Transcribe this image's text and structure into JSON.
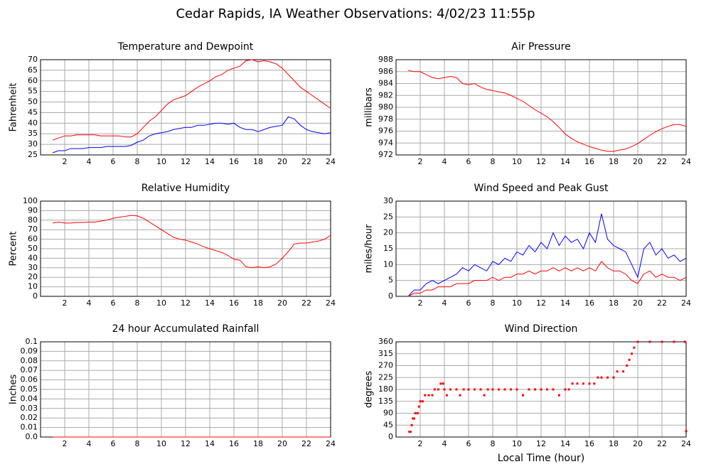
{
  "title": "Cedar Rapids, IA Weather Observations: 4/02/23 11:55p",
  "chart_data": [
    {
      "type": "line",
      "title": "Temperature and Dewpoint",
      "ylabel": "Fahrenheit",
      "x": [
        1,
        1.5,
        2,
        2.5,
        3,
        3.5,
        4,
        4.5,
        5,
        5.5,
        6,
        6.5,
        7,
        7.5,
        8,
        8.5,
        9,
        9.5,
        10,
        10.5,
        11,
        11.5,
        12,
        12.5,
        13,
        13.5,
        14,
        14.5,
        15,
        15.5,
        16,
        16.5,
        17,
        17.5,
        18,
        18.5,
        19,
        19.5,
        20,
        20.5,
        21,
        21.5,
        22,
        22.5,
        23,
        23.5,
        24
      ],
      "series": [
        {
          "name": "Temperature",
          "color": "#ff0000",
          "values": [
            32,
            33,
            34,
            34,
            34.5,
            34.5,
            34.5,
            34.5,
            34,
            34,
            34,
            34,
            33.5,
            33.5,
            35,
            38,
            41,
            43,
            46,
            49,
            51,
            52,
            53,
            55,
            57,
            58.5,
            60,
            62,
            63,
            65,
            66,
            67,
            69.5,
            70,
            69,
            69.5,
            69,
            68,
            66,
            63,
            60,
            57,
            55,
            53,
            51,
            49,
            47
          ]
        },
        {
          "name": "Dewpoint",
          "color": "#0000ff",
          "values": [
            26,
            27,
            27,
            28,
            28,
            28,
            28.5,
            28.5,
            28.5,
            29,
            29,
            29,
            29,
            29.5,
            31,
            32,
            34,
            35,
            35.5,
            36,
            37,
            37.5,
            38,
            38,
            39,
            39,
            39.5,
            40,
            40,
            39.5,
            40,
            38,
            37,
            37,
            36,
            37,
            38,
            38.5,
            39,
            43,
            42,
            39,
            37,
            36,
            35.5,
            35,
            35.5
          ]
        }
      ],
      "xlim": [
        0,
        24
      ],
      "xticks": [
        2,
        4,
        6,
        8,
        10,
        12,
        14,
        16,
        18,
        20,
        22,
        24
      ],
      "ylim": [
        25,
        70
      ],
      "yticks": [
        25,
        30,
        35,
        40,
        45,
        50,
        55,
        60,
        65,
        70
      ],
      "grid": true
    },
    {
      "type": "line",
      "title": "Air Pressure",
      "ylabel": "millibars",
      "x": [
        1,
        1.5,
        2,
        2.5,
        3,
        3.5,
        4,
        4.5,
        5,
        5.5,
        6,
        6.5,
        7,
        7.5,
        8,
        8.5,
        9,
        9.5,
        10,
        10.5,
        11,
        11.5,
        12,
        12.5,
        13,
        13.5,
        14,
        14.5,
        15,
        15.5,
        16,
        16.5,
        17,
        17.5,
        18,
        18.5,
        19,
        19.5,
        20,
        20.5,
        21,
        21.5,
        22,
        22.5,
        23,
        23.5,
        24
      ],
      "series": [
        {
          "name": "Pressure",
          "color": "#ff0000",
          "values": [
            986.2,
            986,
            986,
            985.5,
            985,
            984.8,
            985,
            985.2,
            985,
            984,
            983.8,
            984,
            983.4,
            983,
            982.8,
            982.6,
            982.4,
            982,
            981.5,
            981,
            980.3,
            979.6,
            979,
            978.4,
            977.6,
            976.6,
            975.5,
            974.8,
            974.2,
            973.8,
            973.4,
            973.1,
            972.8,
            972.6,
            972.6,
            972.8,
            973,
            973.4,
            973.9,
            974.6,
            975.3,
            975.9,
            976.4,
            976.8,
            977.1,
            977.1,
            976.8
          ]
        }
      ],
      "xlim": [
        0,
        24
      ],
      "xticks": [
        2,
        4,
        6,
        8,
        10,
        12,
        14,
        16,
        18,
        20,
        22,
        24
      ],
      "ylim": [
        972,
        988
      ],
      "yticks": [
        972,
        974,
        976,
        978,
        980,
        982,
        984,
        986,
        988
      ],
      "grid": true
    },
    {
      "type": "line",
      "title": "Relative Humidity",
      "ylabel": "Percent",
      "x": [
        1,
        1.5,
        2,
        2.5,
        3,
        3.5,
        4,
        4.5,
        5,
        5.5,
        6,
        6.5,
        7,
        7.5,
        8,
        8.5,
        9,
        9.5,
        10,
        10.5,
        11,
        11.5,
        12,
        12.5,
        13,
        13.5,
        14,
        14.5,
        15,
        15.5,
        16,
        16.5,
        17,
        17.5,
        18,
        18.5,
        19,
        19.5,
        20,
        20.5,
        21,
        21.5,
        22,
        22.5,
        23,
        23.5,
        24
      ],
      "series": [
        {
          "name": "Relative Humidity",
          "color": "#ff0000",
          "values": [
            77,
            78,
            77,
            77,
            77.5,
            77.5,
            78,
            78,
            79,
            80,
            82,
            83,
            84,
            85,
            84.5,
            82,
            78,
            74,
            70,
            66,
            62,
            60,
            59,
            57,
            55,
            52,
            50,
            48,
            46,
            43,
            39,
            38,
            31,
            30,
            31,
            30,
            31,
            34,
            40,
            47,
            55,
            56,
            56,
            57,
            58,
            60,
            64
          ]
        }
      ],
      "xlim": [
        0,
        24
      ],
      "xticks": [
        2,
        4,
        6,
        8,
        10,
        12,
        14,
        16,
        18,
        20,
        22,
        24
      ],
      "ylim": [
        0,
        100
      ],
      "yticks": [
        0,
        10,
        20,
        30,
        40,
        50,
        60,
        70,
        80,
        90,
        100
      ],
      "grid": true
    },
    {
      "type": "line",
      "title": "Wind Speed and Peak Gust",
      "ylabel": "miles/hour",
      "x": [
        1,
        1.5,
        2,
        2.5,
        3,
        3.5,
        4,
        4.5,
        5,
        5.5,
        6,
        6.5,
        7,
        7.5,
        8,
        8.5,
        9,
        9.5,
        10,
        10.5,
        11,
        11.5,
        12,
        12.5,
        13,
        13.5,
        14,
        14.5,
        15,
        15.5,
        16,
        16.5,
        17,
        17.5,
        18,
        18.5,
        19,
        19.5,
        20,
        20.5,
        21,
        21.5,
        22,
        22.5,
        23,
        23.5,
        24
      ],
      "series": [
        {
          "name": "Peak Gust",
          "color": "#0000ff",
          "values": [
            0,
            2,
            2,
            4,
            5,
            4,
            5,
            6,
            7,
            9,
            8,
            10,
            9,
            8,
            11,
            10,
            12,
            11,
            14,
            13,
            16,
            14,
            17,
            15,
            20,
            16,
            19,
            17,
            18,
            15,
            20,
            17,
            26,
            18,
            16,
            15,
            14,
            10,
            6,
            15,
            17,
            13,
            15,
            12,
            13,
            11,
            12
          ]
        },
        {
          "name": "Wind Speed",
          "color": "#ff0000",
          "values": [
            0,
            1,
            1,
            2,
            2,
            3,
            3,
            3,
            4,
            4,
            4,
            5,
            5,
            5,
            6,
            5,
            6,
            6,
            7,
            7,
            8,
            7,
            8,
            8,
            9,
            8,
            9,
            8,
            9,
            8,
            9,
            8,
            11,
            9,
            8,
            8,
            7,
            5,
            4,
            7,
            8,
            6,
            7,
            6,
            6,
            5,
            6
          ]
        }
      ],
      "xlim": [
        0,
        24
      ],
      "xticks": [
        2,
        4,
        6,
        8,
        10,
        12,
        14,
        16,
        18,
        20,
        22,
        24
      ],
      "ylim": [
        0,
        30
      ],
      "yticks": [
        0,
        5,
        10,
        15,
        20,
        25,
        30
      ],
      "grid": true
    },
    {
      "type": "line",
      "title": "24 hour Accumulated Rainfall",
      "ylabel": "Inches",
      "x": [
        1,
        24
      ],
      "series": [
        {
          "name": "Rainfall",
          "color": "#ff0000",
          "values": [
            0,
            0
          ]
        }
      ],
      "xlim": [
        0,
        24
      ],
      "xticks": [
        2,
        4,
        6,
        8,
        10,
        12,
        14,
        16,
        18,
        20,
        22,
        24
      ],
      "ylim": [
        0,
        0.1
      ],
      "yticks": [
        {
          "value": 0,
          "label": "0.0"
        },
        0.01,
        0.02,
        0.03,
        0.04,
        0.05,
        0.06,
        0.07,
        0.08,
        0.09,
        0.1
      ],
      "grid": true
    },
    {
      "type": "scatter",
      "title": "Wind Direction",
      "ylabel": "degrees",
      "xlabel": "Local Time (hour)",
      "x": [
        1.1,
        1.2,
        1.3,
        1.4,
        1.5,
        1.6,
        1.8,
        1.9,
        2,
        2.2,
        2.4,
        2.7,
        3,
        3.2,
        3.5,
        3.7,
        3.9,
        4,
        4.2,
        4.5,
        5,
        5.3,
        5.6,
        6,
        6.5,
        7,
        7.3,
        7.6,
        8,
        8.5,
        9,
        9.5,
        10,
        10.5,
        11,
        11.5,
        12,
        12.5,
        13,
        13.5,
        14,
        14.3,
        14.6,
        15,
        15.5,
        16,
        16.4,
        16.7,
        17,
        17.5,
        18,
        18.3,
        18.8,
        19.1,
        19.3,
        19.5,
        19.7,
        20,
        21,
        22,
        23,
        23.9,
        24
      ],
      "series": [
        {
          "name": "Wind Direction",
          "color": "#ff0000",
          "values": [
            20,
            20,
            45,
            70,
            70,
            90,
            90,
            115,
            135,
            135,
            158,
            158,
            158,
            180,
            180,
            202,
            202,
            180,
            158,
            180,
            180,
            158,
            180,
            180,
            180,
            180,
            158,
            180,
            180,
            180,
            180,
            180,
            180,
            158,
            180,
            180,
            180,
            180,
            180,
            158,
            180,
            180,
            202,
            202,
            202,
            202,
            202,
            225,
            225,
            225,
            225,
            248,
            248,
            270,
            292,
            315,
            338,
            360,
            360,
            360,
            360,
            360,
            22
          ]
        }
      ],
      "xlim": [
        0,
        24
      ],
      "xticks": [
        2,
        4,
        6,
        8,
        10,
        12,
        14,
        16,
        18,
        20,
        22,
        24
      ],
      "ylim": [
        0,
        360
      ],
      "yticks": [
        0,
        45,
        90,
        135,
        180,
        225,
        270,
        315,
        360
      ],
      "grid": true
    }
  ]
}
